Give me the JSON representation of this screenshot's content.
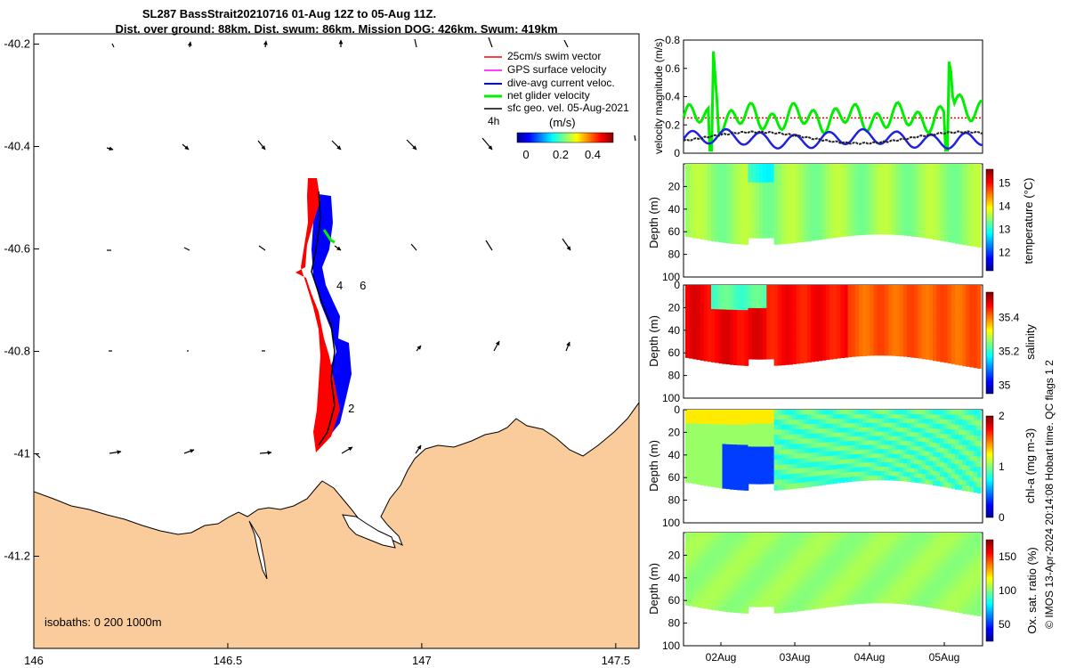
{
  "chart_data": [
    {
      "type": "map",
      "title_line1": "SL287 BassStrait20210716 01-Aug 12Z to 05-Aug 11Z.",
      "title_line2": "Dist. over ground: 88km. Dist. swum: 86km. Mission DOG: 426km. Swum: 419km",
      "x_ticks": [
        "146",
        "146.5",
        "147",
        "147.5"
      ],
      "x_tick_values": [
        146,
        146.5,
        147,
        147.5
      ],
      "xlim": [
        146,
        147.56
      ],
      "y_ticks": [
        "-40.2",
        "-40.4",
        "-40.6",
        "-40.8",
        "-41",
        "-41.2"
      ],
      "y_tick_values": [
        -40.2,
        -40.4,
        -40.6,
        -40.8,
        -41,
        -41.2
      ],
      "ylim": [
        -41.38,
        -40.18
      ],
      "legend": [
        {
          "label": "25cm/s swim vector",
          "color": "#ff0000"
        },
        {
          "label": "GPS surface velocity",
          "color": "#ff00ff"
        },
        {
          "label": "dive-avg current veloc.",
          "color": "#0000ff"
        },
        {
          "label": "net glider velocity",
          "color": "#00ee00"
        },
        {
          "label": "sfc geo. vel. 05-Aug-2021",
          "color": "#000000"
        }
      ],
      "time_marker": "4h",
      "colorbar_label": "(m/s)",
      "colorbar_ticks": [
        "0",
        "0.2",
        "0.4"
      ],
      "track_labels": [
        {
          "text": "4",
          "lon": 146.78,
          "lat": -40.67
        },
        {
          "text": "6",
          "lon": 146.84,
          "lat": -40.67
        },
        {
          "text": "2",
          "lon": 146.81,
          "lat": -40.91
        }
      ],
      "isobaths_label": "isobaths: 0   200  1000m",
      "land_color": "#facb9b"
    },
    {
      "type": "line",
      "ylabel": "velocity magnitude (m/s)",
      "y_ticks": [
        "0",
        "0.2",
        "0.4",
        "0.6",
        "0.8"
      ],
      "ylim": [
        0,
        0.8
      ],
      "series_colors": [
        "#00ee00",
        "#0000ff",
        "#222222",
        "#ff0000"
      ],
      "swim_reference": 0.25
    },
    {
      "type": "heatmap",
      "ylabel": "Depth (m)",
      "colorbar_label": "temperature (°C)",
      "colorbar_ticks": [
        "12",
        "13",
        "14",
        "15"
      ],
      "y_ticks": [
        "20",
        "40",
        "60",
        "80",
        "100"
      ],
      "ylim": [
        0,
        100
      ],
      "clim": [
        11.2,
        15.6
      ]
    },
    {
      "type": "heatmap",
      "ylabel": "Depth (m)",
      "colorbar_label": "salinity",
      "colorbar_ticks": [
        "35",
        "35.2",
        "35.4"
      ],
      "y_ticks": [
        "0",
        "20",
        "40",
        "60",
        "80",
        "100"
      ],
      "ylim": [
        0,
        100
      ],
      "clim": [
        34.95,
        35.55
      ]
    },
    {
      "type": "heatmap",
      "ylabel": "Depth (m)",
      "colorbar_label": "chl-a (mg m-3)",
      "colorbar_ticks": [
        "0",
        "1",
        "2"
      ],
      "y_ticks": [
        "0",
        "20",
        "40",
        "60",
        "80",
        "100"
      ],
      "ylim": [
        0,
        100
      ],
      "clim": [
        0,
        2
      ]
    },
    {
      "type": "heatmap",
      "ylabel": "Depth (m)",
      "colorbar_label": "Ox. sat. ratio (%)",
      "colorbar_ticks": [
        "50",
        "100",
        "150"
      ],
      "y_ticks": [
        "20",
        "40",
        "60",
        "80",
        "100"
      ],
      "ylim": [
        0,
        100
      ],
      "clim": [
        25,
        175
      ],
      "x_ticks": [
        "02Aug",
        "03Aug",
        "04Aug",
        "05Aug"
      ]
    }
  ],
  "footer_credit": "© IMOS 13-Apr-2024 20:14:08 Hobart time. QC flags 1  2"
}
